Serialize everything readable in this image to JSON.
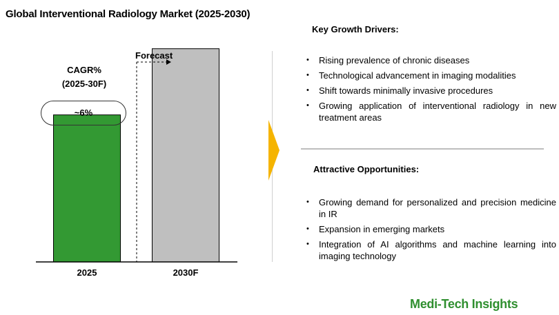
{
  "title": "Global Interventional Radiology Market (2025-2030)",
  "cagr": {
    "label_line1": "CAGR%",
    "label_line2": "(2025-30F)",
    "value": "~6%"
  },
  "forecast_label": "Forecast",
  "chart_data": {
    "type": "bar",
    "categories": [
      "2025",
      "2030F"
    ],
    "values": [
      1,
      1.45
    ],
    "colors": [
      "#339933",
      "#bfbfbf"
    ],
    "title": "Global Interventional Radiology Market (2025-2030)",
    "xlabel": "",
    "ylabel": "",
    "ylim": [
      0,
      1.5
    ],
    "grid": false
  },
  "drivers": {
    "title": "Key Growth Drivers:",
    "items": [
      "Rising prevalence of chronic diseases",
      "Technological advancement in imaging modalities",
      "Shift towards minimally invasive procedures",
      "Growing application of interventional radiology in new treatment areas"
    ]
  },
  "opportunities": {
    "title": "Attractive Opportunities:",
    "items": [
      "Growing demand for personalized  and precision medicine in IR",
      "Expansion in emerging markets",
      "Integration of AI algorithms and machine learning into imaging technology"
    ]
  },
  "brand": "Medi-Tech Insights",
  "colors": {
    "arrow": "#f5b400",
    "brand": "#2f8f2f"
  }
}
